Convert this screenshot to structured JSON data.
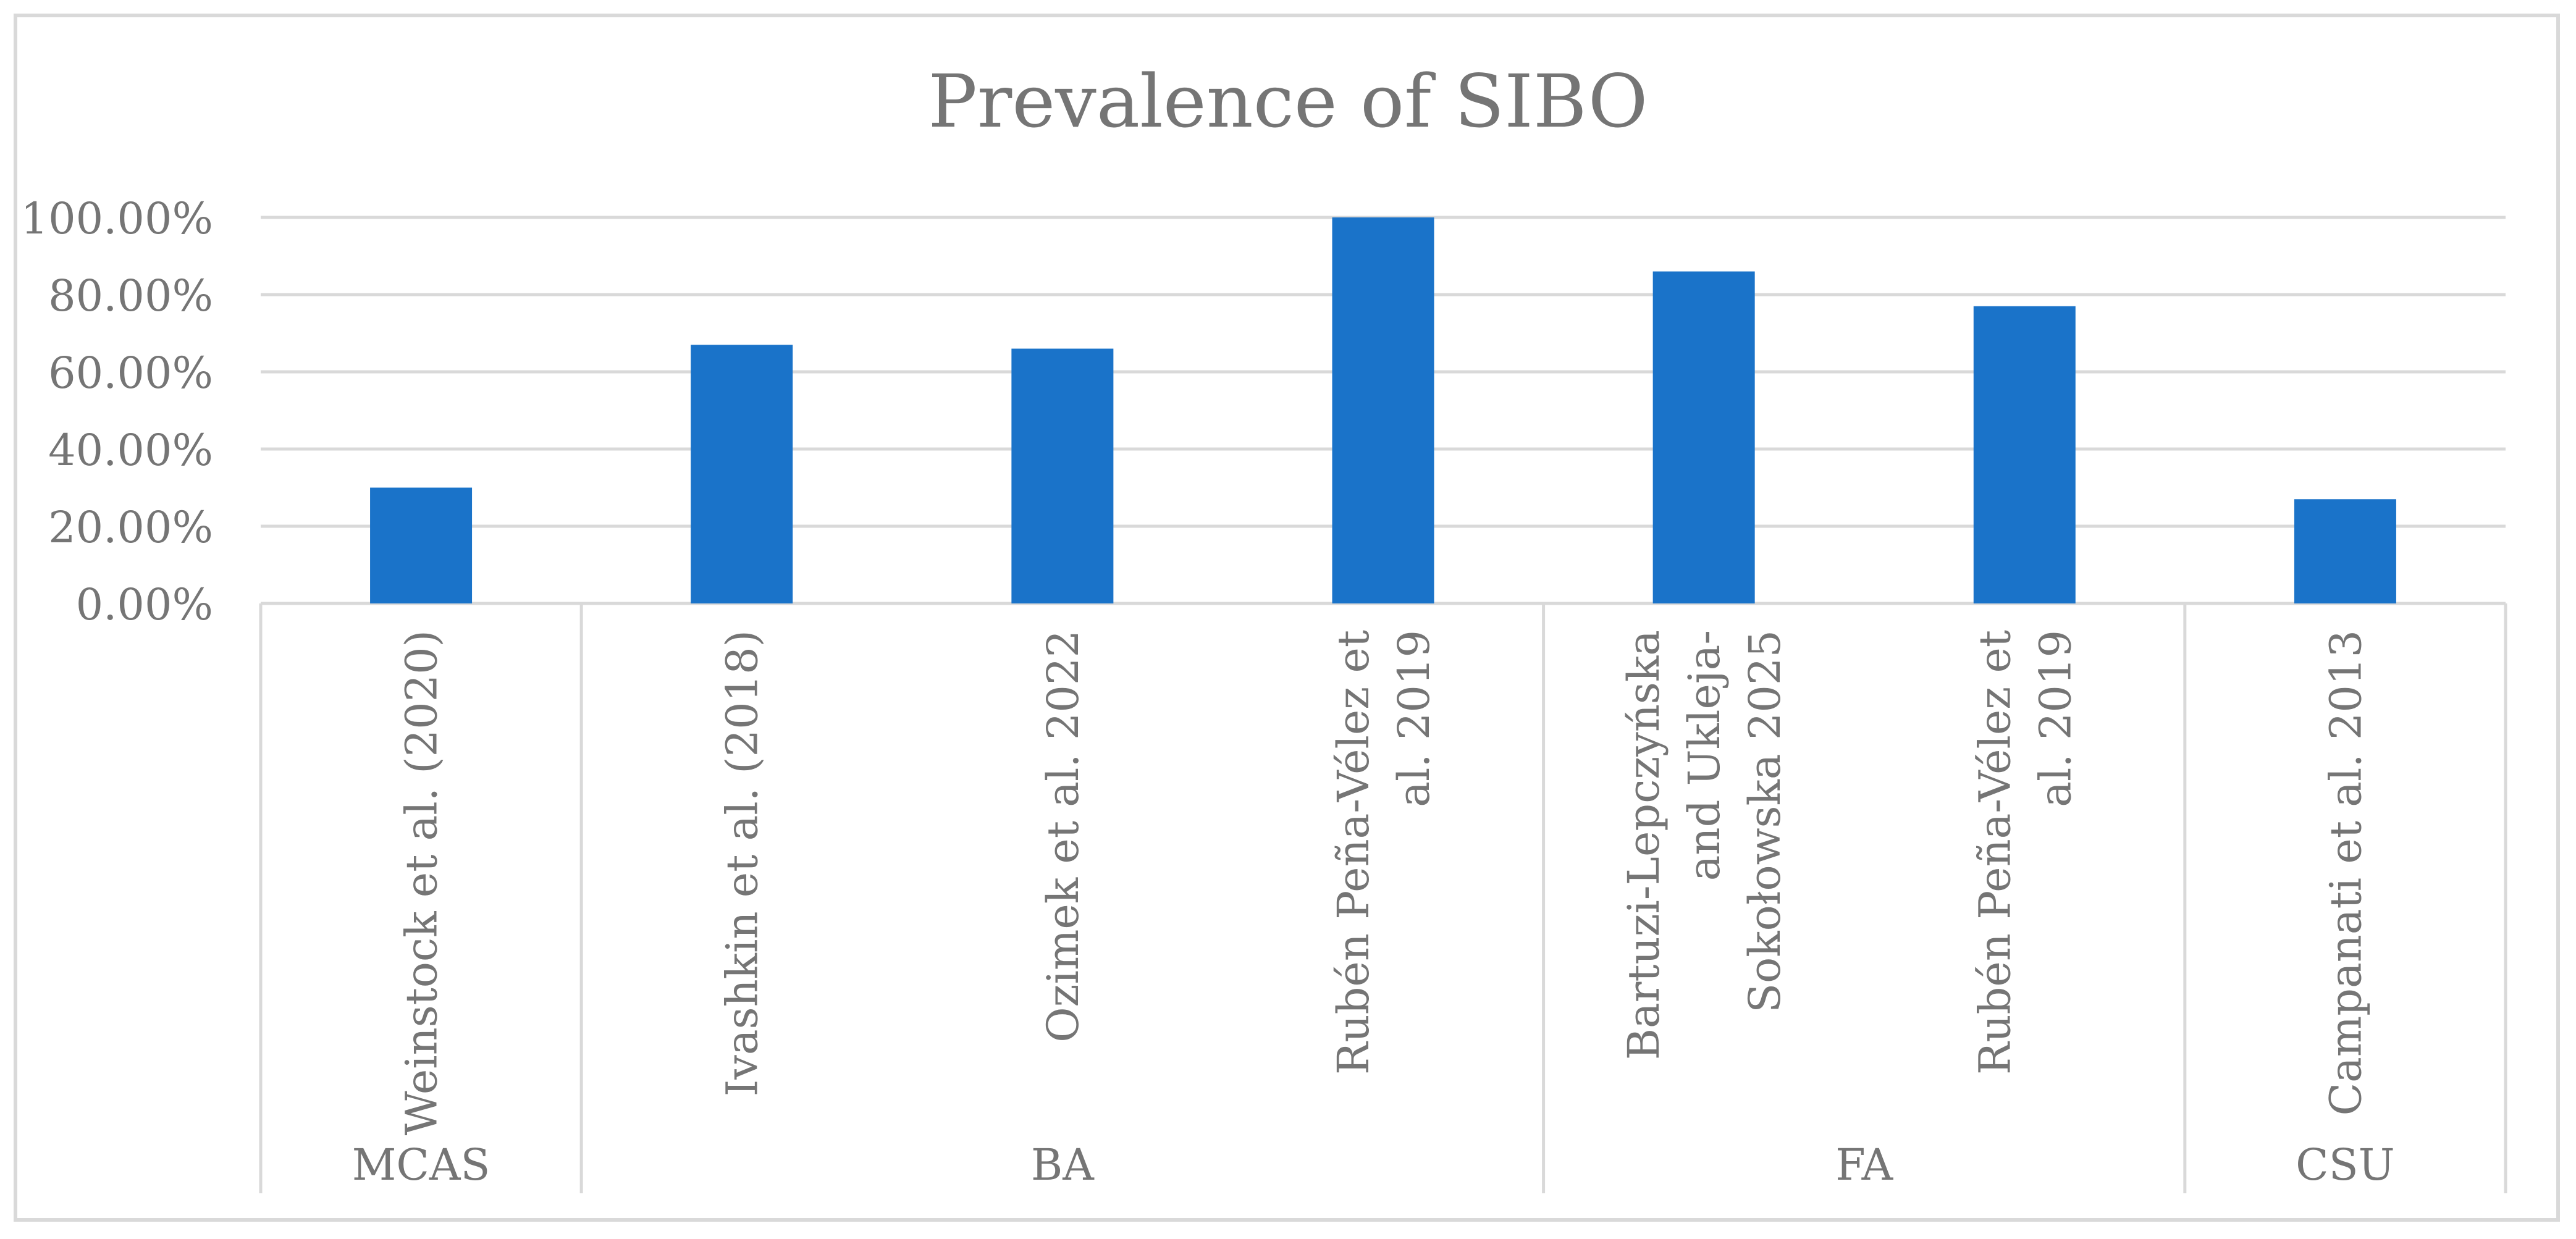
{
  "chart_data": {
    "type": "bar",
    "title": "Prevalence of SIBO",
    "xlabel": "",
    "ylabel": "",
    "ylim": [
      0,
      1
    ],
    "y_tick_values": [
      0,
      0.2,
      0.4,
      0.6,
      0.8,
      1.0
    ],
    "y_tick_labels": [
      "0.00%",
      "20.00%",
      "40.00%",
      "60.00%",
      "80.00%",
      "100.00%"
    ],
    "grid": true,
    "legend": "none",
    "bar_color": "#1a73c9",
    "categories": [
      [
        "Weinstock et al. (2020)"
      ],
      [
        "Ivashkin et al. (2018)"
      ],
      [
        "Ozimek et al. 2022"
      ],
      [
        "Rubén Peña-Vélez et",
        "al. 2019"
      ],
      [
        "Bartuzi-Lepczyńska",
        "and Ukleja-",
        "Sokołowska 2025"
      ],
      [
        "Rubén Peña-Vélez et",
        "al. 2019"
      ],
      [
        "Campanati et al. 2013"
      ]
    ],
    "groups": [
      {
        "label": "MCAS",
        "count": 1
      },
      {
        "label": "BA",
        "count": 3
      },
      {
        "label": "FA",
        "count": 2
      },
      {
        "label": "CSU",
        "count": 1
      }
    ],
    "values": [
      0.3,
      0.67,
      0.66,
      1.0,
      0.86,
      0.77,
      0.27
    ]
  }
}
